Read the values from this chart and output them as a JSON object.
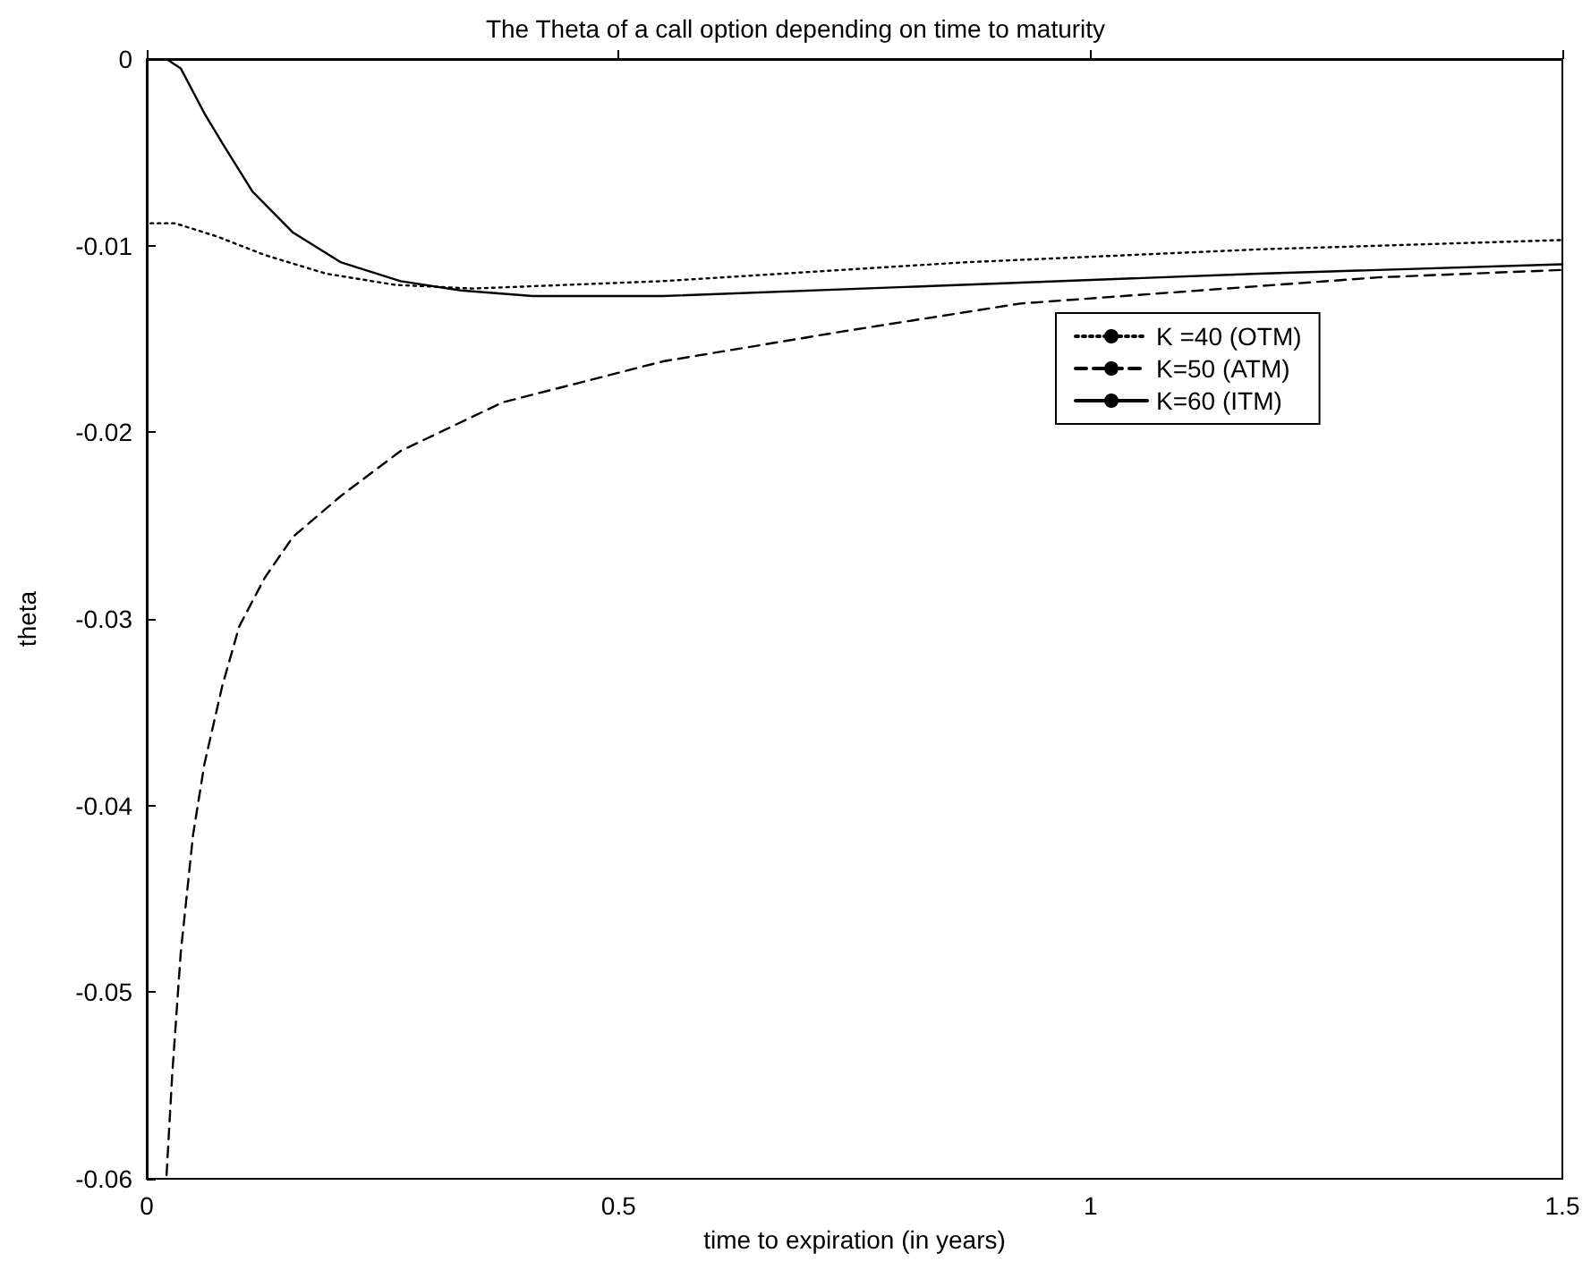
{
  "chart_data": {
    "type": "line",
    "title": "The Theta of a call option depending on time to maturity",
    "xlabel": "time to expiration (in years)",
    "ylabel": "theta",
    "xlim": [
      0,
      1.5
    ],
    "xticks": [
      0,
      0.5,
      1,
      1.5
    ],
    "ylim": [
      -0.06,
      0
    ],
    "yticks": [
      -0.06,
      -0.05,
      -0.04,
      -0.03,
      -0.02,
      -0.01,
      0
    ],
    "grid": false,
    "legend": "right",
    "marker": "none",
    "series": [
      {
        "name": "K =40 (OTM)",
        "color": "#000000",
        "line_style": "dotted",
        "x": [
          0.004,
          0.03,
          0.074,
          0.125,
          0.19,
          0.263,
          0.345,
          0.547,
          0.864,
          1.178,
          1.5
        ],
        "values": [
          -0.0088,
          -0.0088,
          -0.0095,
          -0.0105,
          -0.0115,
          -0.0121,
          -0.0123,
          -0.0119,
          -0.0109,
          -0.0102,
          -0.0097
        ]
      },
      {
        "name": "K=50 (ATM)",
        "color": "#000000",
        "line_style": "dashed",
        "x": [
          0.021,
          0.027,
          0.036,
          0.049,
          0.061,
          0.08,
          0.098,
          0.125,
          0.155,
          0.206,
          0.269,
          0.377,
          0.547,
          0.737,
          0.926,
          1.116,
          1.305,
          1.5
        ],
        "values": [
          -0.0598,
          -0.0544,
          -0.0479,
          -0.0416,
          -0.0378,
          -0.0336,
          -0.0304,
          -0.0278,
          -0.0256,
          -0.0234,
          -0.021,
          -0.0184,
          -0.0162,
          -0.0146,
          -0.0131,
          -0.0124,
          -0.0117,
          -0.0113
        ]
      },
      {
        "name": "K=60 (ITM)",
        "color": "#000000",
        "line_style": "solid",
        "x": [
          0.021,
          0.036,
          0.061,
          0.08,
          0.112,
          0.155,
          0.206,
          0.269,
          0.333,
          0.409,
          0.547,
          0.864,
          1.178,
          1.5
        ],
        "values": [
          0,
          -0.0005,
          -0.0029,
          -0.0045,
          -0.0071,
          -0.0093,
          -0.0109,
          -0.0119,
          -0.0124,
          -0.0127,
          -0.0127,
          -0.0121,
          -0.0115,
          -0.011
        ]
      }
    ]
  }
}
